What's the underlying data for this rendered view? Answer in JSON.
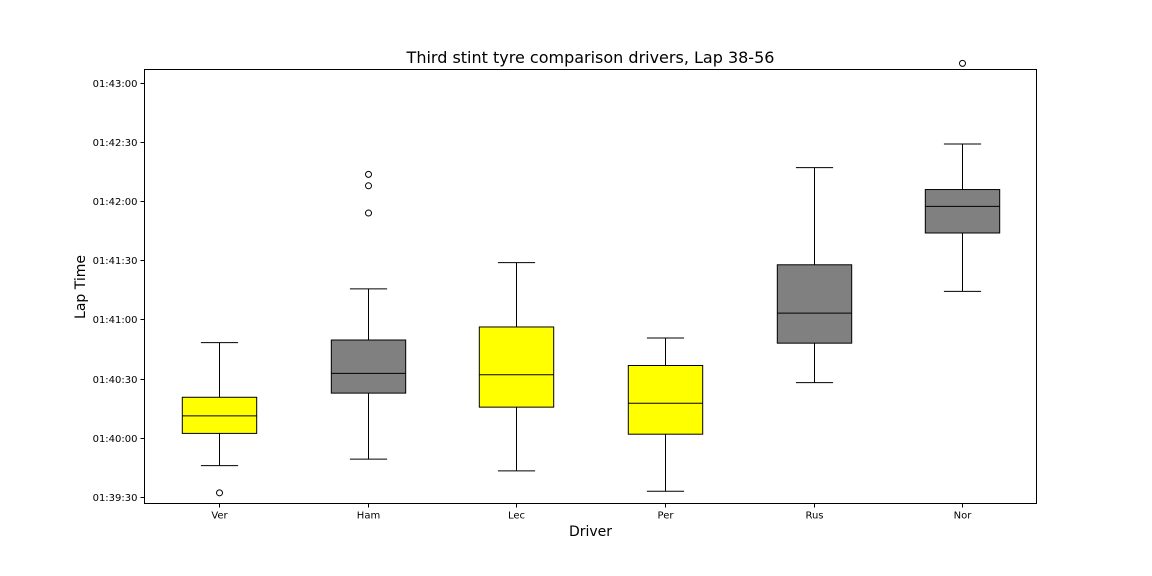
{
  "chart_data": {
    "type": "box",
    "title": "Third stint tyre comparison drivers, Lap 38-56",
    "xlabel": "Driver",
    "ylabel": "Lap Time",
    "categories": [
      "Ver",
      "Ham",
      "Lec",
      "Per",
      "Rus",
      "Nor"
    ],
    "y_unit": "seconds",
    "ylim": [
      5966.8,
      6186.6
    ],
    "yticks": [
      5970,
      6000,
      6030,
      6060,
      6090,
      6120,
      6150,
      6180
    ],
    "ytick_labels": [
      "01:39:30",
      "01:40:00",
      "01:40:30",
      "01:41:00",
      "01:41:30",
      "01:42:00",
      "01:42:30",
      "01:43:00"
    ],
    "grid": false,
    "series": [
      {
        "category": "Ver",
        "color": "#ffff00",
        "whisker_low": 5986.0,
        "q1": 6002.3,
        "median": 6011.2,
        "q3": 6020.6,
        "whisker_high": 6048.3,
        "outliers": [
          5972.2
        ]
      },
      {
        "category": "Ham",
        "color": "#808080",
        "whisker_low": 5989.3,
        "q1": 6022.7,
        "median": 6032.7,
        "q3": 6049.6,
        "whisker_high": 6075.5,
        "outliers": [
          6133.5,
          6127.7,
          6113.9
        ]
      },
      {
        "category": "Lec",
        "color": "#ffff00",
        "whisker_low": 5983.3,
        "q1": 6015.6,
        "median": 6032.0,
        "q3": 6056.2,
        "whisker_high": 6088.8,
        "outliers": []
      },
      {
        "category": "Per",
        "color": "#ffff00",
        "whisker_low": 5973.0,
        "q1": 6001.9,
        "median": 6017.6,
        "q3": 6036.7,
        "whisker_high": 6050.6,
        "outliers": []
      },
      {
        "category": "Rus",
        "color": "#808080",
        "whisker_low": 6028.0,
        "q1": 6048.0,
        "median": 6063.2,
        "q3": 6087.7,
        "whisker_high": 6136.9,
        "outliers": []
      },
      {
        "category": "Nor",
        "color": "#808080",
        "whisker_low": 6074.2,
        "q1": 6103.8,
        "median": 6117.3,
        "q3": 6125.8,
        "whisker_high": 6148.9,
        "outliers": [
          6189.7
        ]
      }
    ]
  }
}
